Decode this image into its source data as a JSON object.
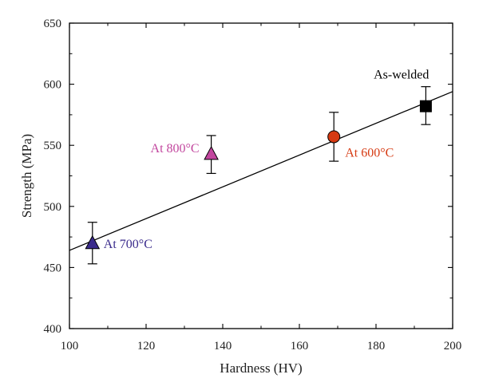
{
  "chart_data": {
    "type": "scatter",
    "title": "",
    "xlabel": "Hardness (HV)",
    "ylabel": "Strength (MPa)",
    "xlim": [
      100,
      200
    ],
    "ylim": [
      400,
      650
    ],
    "xticks": [
      100,
      120,
      140,
      160,
      180,
      200
    ],
    "yticks": [
      400,
      450,
      500,
      550,
      600,
      650
    ],
    "xtick_labels": [
      "100",
      "120",
      "140",
      "160",
      "180",
      "200"
    ],
    "ytick_labels": [
      "400",
      "450",
      "500",
      "550",
      "600",
      "650"
    ],
    "x_minor_step": 10,
    "y_minor_step": 25,
    "grid": false,
    "legend": "none",
    "points": [
      {
        "label": "As-welded",
        "x": 193,
        "y": 582,
        "err_low": 567,
        "err_high": 598,
        "marker": "square",
        "color": "#000000",
        "label_color": "#000000",
        "label_position": "above-left"
      },
      {
        "label": "At 600°C",
        "x": 169,
        "y": 557,
        "err_low": 537,
        "err_high": 577,
        "marker": "circle",
        "color": "#d63a12",
        "label_color": "#d63a12",
        "label_position": "right"
      },
      {
        "label": "At 800°C",
        "x": 137,
        "y": 543,
        "err_low": 527,
        "err_high": 558,
        "marker": "triangle",
        "color": "#c2469e",
        "label_color": "#c2469e",
        "label_position": "left"
      },
      {
        "label": "At 700°C",
        "x": 106,
        "y": 470,
        "err_low": 453,
        "err_high": 487,
        "marker": "triangle",
        "color": "#3a2b8c",
        "label_color": "#3a2b8c",
        "label_position": "right"
      }
    ],
    "fit_line": {
      "type": "linear",
      "x": [
        100,
        200
      ],
      "y": [
        464,
        594
      ],
      "color": "#000000"
    }
  }
}
